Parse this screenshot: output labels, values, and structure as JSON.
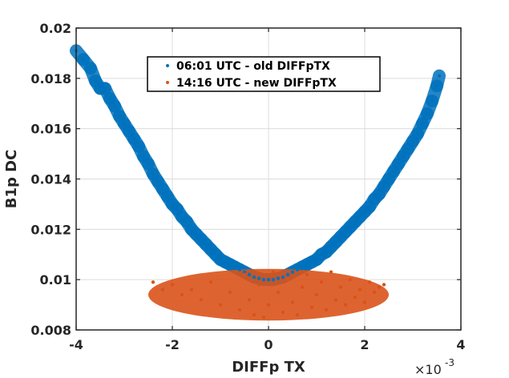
{
  "chart_data": {
    "type": "scatter",
    "xlabel": "DIFFp TX",
    "ylabel": "B1p DC",
    "x_multiplier_label": "×10",
    "x_multiplier_exponent": "-3",
    "xlim": [
      -0.004,
      0.004
    ],
    "ylim": [
      0.008,
      0.02
    ],
    "x_ticks": [
      -0.004,
      -0.002,
      0,
      0.002,
      0.004
    ],
    "x_tick_labels": [
      "-4",
      "-2",
      "0",
      "2",
      "4"
    ],
    "y_ticks": [
      0.008,
      0.01,
      0.012,
      0.014,
      0.016,
      0.018,
      0.02
    ],
    "y_tick_labels": [
      "0.008",
      "0.01",
      "0.012",
      "0.014",
      "0.016",
      "0.018",
      "0.02"
    ],
    "grid": true,
    "legend_position": "top-center",
    "series": [
      {
        "name": "06:01 UTC - old DIFFpTX",
        "color": "#0072BD",
        "points": [
          [
            -0.004,
            0.0191
          ],
          [
            -0.00385,
            0.01875
          ],
          [
            -0.0037,
            0.0184
          ],
          [
            -0.0036,
            0.0179
          ],
          [
            -0.0035,
            0.0176
          ],
          [
            -0.0034,
            0.0176
          ],
          [
            -0.0033,
            0.0172
          ],
          [
            -0.0032,
            0.0169
          ],
          [
            -0.0031,
            0.0165
          ],
          [
            -0.003,
            0.0162
          ],
          [
            -0.0029,
            0.0159
          ],
          [
            -0.0028,
            0.0156
          ],
          [
            -0.0027,
            0.0153
          ],
          [
            -0.0026,
            0.0149
          ],
          [
            -0.0025,
            0.0146
          ],
          [
            -0.0024,
            0.0142
          ],
          [
            -0.0023,
            0.0139
          ],
          [
            -0.0022,
            0.0136
          ],
          [
            -0.0021,
            0.0133
          ],
          [
            -0.002,
            0.013
          ],
          [
            -0.0019,
            0.0128
          ],
          [
            -0.0018,
            0.0125
          ],
          [
            -0.0017,
            0.0123
          ],
          [
            -0.0016,
            0.012
          ],
          [
            -0.0015,
            0.0118
          ],
          [
            -0.0014,
            0.0116
          ],
          [
            -0.0013,
            0.0114
          ],
          [
            -0.0012,
            0.0112
          ],
          [
            -0.0011,
            0.011
          ],
          [
            -0.001,
            0.0108
          ],
          [
            -0.0009,
            0.0107
          ],
          [
            -0.0008,
            0.0106
          ],
          [
            -0.0007,
            0.0105
          ],
          [
            -0.0006,
            0.0104
          ],
          [
            -0.0005,
            0.0103
          ],
          [
            -0.0004,
            0.0102
          ],
          [
            -0.0003,
            0.0101
          ],
          [
            -0.0002,
            0.01005
          ],
          [
            -0.0001,
            0.01
          ],
          [
            0.0,
            0.01
          ],
          [
            0.0001,
            0.01
          ],
          [
            0.0002,
            0.01005
          ],
          [
            0.0003,
            0.0101
          ],
          [
            0.0004,
            0.0102
          ],
          [
            0.0005,
            0.0103
          ],
          [
            0.0006,
            0.0104
          ],
          [
            0.0007,
            0.0105
          ],
          [
            0.0008,
            0.0106
          ],
          [
            0.0009,
            0.0107
          ],
          [
            0.001,
            0.0108
          ],
          [
            0.0011,
            0.011
          ],
          [
            0.0012,
            0.0111
          ],
          [
            0.0013,
            0.0113
          ],
          [
            0.0014,
            0.0115
          ],
          [
            0.0015,
            0.0117
          ],
          [
            0.0016,
            0.0119
          ],
          [
            0.0017,
            0.0121
          ],
          [
            0.0018,
            0.0123
          ],
          [
            0.0019,
            0.0125
          ],
          [
            0.002,
            0.0127
          ],
          [
            0.0021,
            0.0129
          ],
          [
            0.0022,
            0.0132
          ],
          [
            0.0023,
            0.0134
          ],
          [
            0.0024,
            0.0137
          ],
          [
            0.0025,
            0.014
          ],
          [
            0.0026,
            0.0143
          ],
          [
            0.0027,
            0.0146
          ],
          [
            0.0028,
            0.0149
          ],
          [
            0.0029,
            0.0152
          ],
          [
            0.003,
            0.0155
          ],
          [
            0.0031,
            0.0158
          ],
          [
            0.0032,
            0.0162
          ],
          [
            0.0033,
            0.0166
          ],
          [
            0.0034,
            0.0171
          ],
          [
            0.0035,
            0.0177
          ],
          [
            0.00355,
            0.0181
          ]
        ]
      },
      {
        "name": "14:16 UTC - new DIFFpTX",
        "color": "#D95319",
        "points": [
          [
            -0.0024,
            0.0099
          ],
          [
            -0.0022,
            0.0096
          ],
          [
            -0.002,
            0.0098
          ],
          [
            -0.0018,
            0.0094
          ],
          [
            -0.0016,
            0.0096
          ],
          [
            -0.0014,
            0.0092
          ],
          [
            -0.0012,
            0.0099
          ],
          [
            -0.001,
            0.009
          ],
          [
            -0.0008,
            0.0095
          ],
          [
            -0.0006,
            0.0088
          ],
          [
            -0.0005,
            0.0102
          ],
          [
            -0.0004,
            0.0092
          ],
          [
            -0.0003,
            0.0086
          ],
          [
            -0.0002,
            0.0098
          ],
          [
            -0.0001,
            0.0085
          ],
          [
            0.0,
            0.009
          ],
          [
            0.0001,
            0.0103
          ],
          [
            0.0002,
            0.0095
          ],
          [
            0.0003,
            0.0087
          ],
          [
            0.0004,
            0.01
          ],
          [
            0.0005,
            0.0091
          ],
          [
            0.0006,
            0.0086
          ],
          [
            0.0007,
            0.0097
          ],
          [
            0.0008,
            0.0102
          ],
          [
            0.0009,
            0.0089
          ],
          [
            0.001,
            0.0094
          ],
          [
            0.0011,
            0.0099
          ],
          [
            0.0012,
            0.0088
          ],
          [
            0.0013,
            0.0103
          ],
          [
            0.0014,
            0.0092
          ],
          [
            0.0015,
            0.0097
          ],
          [
            0.0016,
            0.009
          ],
          [
            0.0017,
            0.01
          ],
          [
            0.0018,
            0.0093
          ],
          [
            0.0019,
            0.0096
          ],
          [
            0.002,
            0.0091
          ],
          [
            0.0021,
            0.0099
          ],
          [
            0.0022,
            0.0095
          ],
          [
            0.0023,
            0.0097
          ],
          [
            0.0024,
            0.0098
          ]
        ]
      }
    ]
  }
}
